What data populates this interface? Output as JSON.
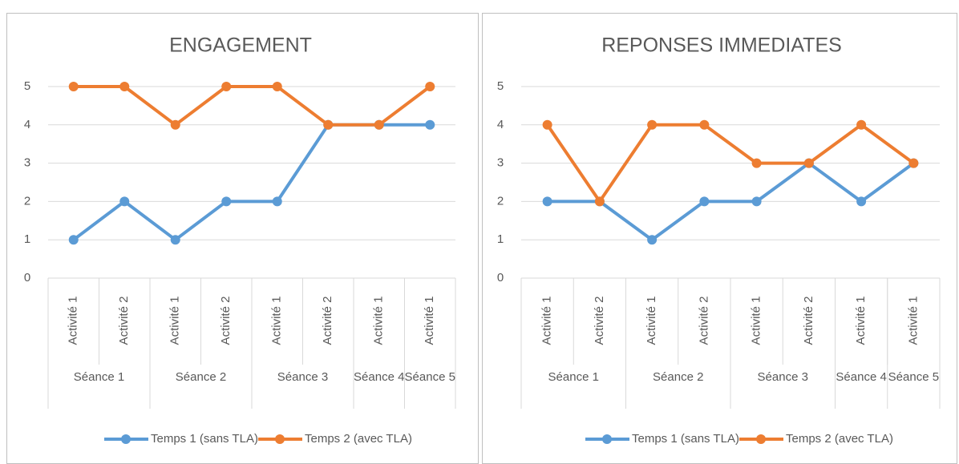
{
  "charts": [
    {
      "type": "line",
      "title": "ENGAGEMENT",
      "categories": [
        "Activité 1",
        "Activité 2",
        "Activité 1",
        "Activité 2",
        "Activité 1",
        "Activité 2",
        "Activité 1",
        "Activité 1"
      ],
      "groups": [
        {
          "name": "Séance 1",
          "span": 2
        },
        {
          "name": "Séance 2",
          "span": 2
        },
        {
          "name": "Séance 3",
          "span": 2
        },
        {
          "name": "Séance 4",
          "span": 1
        },
        {
          "name": "Séance 5",
          "span": 1
        }
      ],
      "series": [
        {
          "name": "Temps 1 (sans TLA)",
          "color": "#5b9bd5",
          "values": [
            1,
            2,
            1,
            2,
            2,
            4,
            4,
            4
          ]
        },
        {
          "name": "Temps 2 (avec TLA)",
          "color": "#ed7d31",
          "values": [
            5,
            5,
            4,
            5,
            5,
            4,
            4,
            5
          ]
        }
      ],
      "ylim": [
        0,
        5
      ],
      "yticks": [
        0,
        1,
        2,
        3,
        4,
        5
      ],
      "grid": true,
      "legend": "bottom"
    },
    {
      "type": "line",
      "title": "REPONSES IMMEDIATES",
      "categories": [
        "Activité 1",
        "Activité 2",
        "Activité 1",
        "Activité 2",
        "Activité 1",
        "Activité 2",
        "Activité 1",
        "Activité 1"
      ],
      "groups": [
        {
          "name": "Séance 1",
          "span": 2
        },
        {
          "name": "Séance 2",
          "span": 2
        },
        {
          "name": "Séance 3",
          "span": 2
        },
        {
          "name": "Séance 4",
          "span": 1
        },
        {
          "name": "Séance 5",
          "span": 1
        }
      ],
      "series": [
        {
          "name": "Temps 1 (sans TLA)",
          "color": "#5b9bd5",
          "values": [
            2,
            2,
            1,
            2,
            2,
            3,
            2,
            3
          ]
        },
        {
          "name": "Temps 2 (avec TLA)",
          "color": "#ed7d31",
          "values": [
            4,
            2,
            4,
            4,
            3,
            3,
            4,
            3
          ]
        }
      ],
      "ylim": [
        0,
        5
      ],
      "yticks": [
        0,
        1,
        2,
        3,
        4,
        5
      ],
      "grid": true,
      "legend": "bottom"
    }
  ]
}
